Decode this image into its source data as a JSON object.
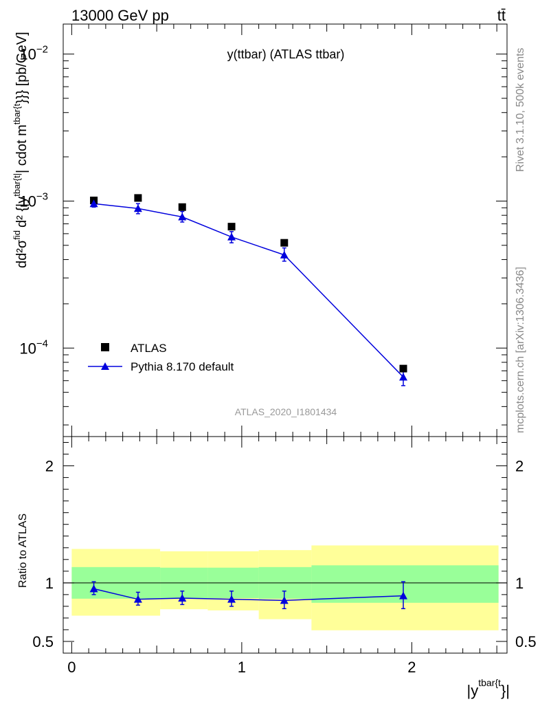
{
  "header": {
    "energy_label": "13000 GeV pp",
    "process_label": "tt̄"
  },
  "side": {
    "rivet_label": "Rivet 3.1.10,  500k events",
    "mcplots_label": "mcplots.cern.ch [arXiv:1306.3436]"
  },
  "chart_data": [
    {
      "type": "scatter",
      "title": "y(ttbar) (ATLAS ttbar)",
      "analysis_label": "ATLAS_2020_I1801434",
      "ylabel_parts": {
        "pre": "d",
        "mid": "d²σ",
        "fid": "fid",
        "den": "d² {|y",
        "sub": "tbar{t|",
        "rest": "| cdot m",
        "sup": "tbar{t",
        "tail": "}}} [pb/GeV]"
      },
      "yscale": "log",
      "ylim": [
        2.5e-05,
        0.016
      ],
      "xlim": [
        -0.05,
        2.56
      ],
      "y_tick_labels": [
        {
          "value": 0.01,
          "base": "10",
          "exp": "−2"
        },
        {
          "value": 0.001,
          "base": "10",
          "exp": "−3"
        },
        {
          "value": 0.0001,
          "base": "10",
          "exp": "−4"
        }
      ],
      "legend": {
        "placement": "bottom-left",
        "entries": [
          "ATLAS",
          "Pythia 8.170 default"
        ]
      },
      "series": [
        {
          "name": "ATLAS",
          "marker": "square",
          "color": "#000000",
          "x": [
            0.13,
            0.39,
            0.65,
            0.94,
            1.25,
            1.95
          ],
          "y": [
            0.00101,
            0.00105,
            0.00091,
            0.00067,
            0.00052,
            7.25e-05
          ]
        },
        {
          "name": "Pythia 8.170 default",
          "marker": "triangle",
          "color": "#0000dd",
          "x": [
            0.13,
            0.39,
            0.65,
            0.94,
            1.25,
            1.95
          ],
          "y": [
            0.00096,
            0.00089,
            0.00078,
            0.00057,
            0.00043,
            6.35e-05
          ],
          "yerr_low": [
            0.00091,
            0.00082,
            0.00072,
            0.00052,
            0.00039,
            5.55e-05
          ],
          "yerr_high": [
            0.00101,
            0.00096,
            0.00085,
            0.00062,
            0.00048,
            7.15e-05
          ]
        }
      ]
    },
    {
      "type": "scatter",
      "ylabel": "Ratio to ATLAS",
      "xlabel_parts": {
        "pre": "|y",
        "sup": "tbar{t",
        "post": "}|"
      },
      "xlim": [
        -0.05,
        2.56
      ],
      "ylim": [
        0.4,
        2.25
      ],
      "x_ticks": [
        0,
        1,
        2
      ],
      "x_tick_labels": [
        "0",
        "1",
        "2"
      ],
      "y_ticks": [
        0.5,
        1,
        2
      ],
      "y_tick_labels": [
        "0.5",
        "1",
        "2"
      ],
      "reference_line": 1.0,
      "bands": [
        {
          "x0": 0.0,
          "x1": 0.52,
          "green_lo": 0.865,
          "green_hi": 1.135,
          "yellow_lo": 0.72,
          "yellow_hi": 1.29
        },
        {
          "x0": 0.52,
          "x1": 0.8,
          "green_lo": 0.87,
          "green_hi": 1.13,
          "yellow_lo": 0.775,
          "yellow_hi": 1.27
        },
        {
          "x0": 0.8,
          "x1": 1.1,
          "green_lo": 0.87,
          "green_hi": 1.13,
          "yellow_lo": 0.765,
          "yellow_hi": 1.27
        },
        {
          "x0": 1.1,
          "x1": 1.41,
          "green_lo": 0.865,
          "green_hi": 1.135,
          "yellow_lo": 0.69,
          "yellow_hi": 1.28
        },
        {
          "x0": 1.41,
          "x1": 2.51,
          "green_lo": 0.83,
          "green_hi": 1.15,
          "yellow_lo": 0.595,
          "yellow_hi": 1.32
        }
      ],
      "series": [
        {
          "name": "Pythia 8.170 default",
          "x": [
            0.13,
            0.39,
            0.65,
            0.94,
            1.25,
            1.95
          ],
          "y": [
            0.95,
            0.86,
            0.87,
            0.86,
            0.85,
            0.89
          ],
          "yerr_low": [
            0.9,
            0.81,
            0.815,
            0.8,
            0.78,
            0.78
          ],
          "yerr_high": [
            1.01,
            0.92,
            0.93,
            0.93,
            0.93,
            1.01
          ]
        }
      ]
    }
  ]
}
